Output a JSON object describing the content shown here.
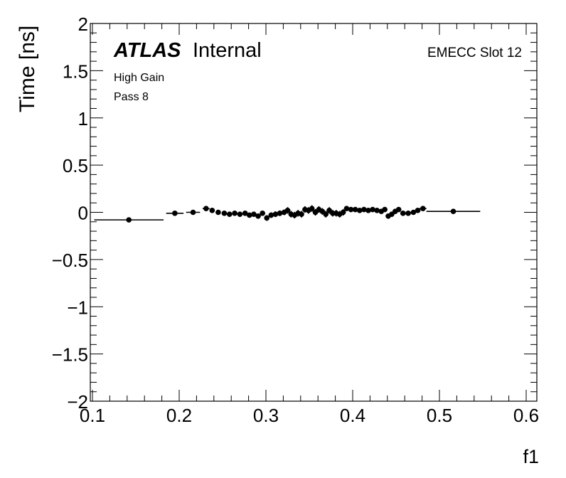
{
  "chart_data": {
    "type": "scatter",
    "xlabel": "f1",
    "ylabel": "Time [ns]",
    "xlim": [
      0.1,
      0.6
    ],
    "ylim": [
      -2,
      2
    ],
    "x_ticks": [
      "0.1",
      "0.2",
      "0.3",
      "0.4",
      "0.5",
      "0.6"
    ],
    "y_ticks": [
      "2",
      "1.5",
      "1",
      "0.5",
      "0",
      "−0.5",
      "−1",
      "−1.5",
      "−2"
    ],
    "x_tick_values": [
      0.1,
      0.2,
      0.3,
      0.4,
      0.5,
      0.6
    ],
    "y_tick_values": [
      2,
      1.5,
      1,
      0.5,
      0,
      -0.5,
      -1,
      -1.5,
      -2
    ],
    "grid": false,
    "annotations": {
      "experiment": "ATLAS",
      "status": "Internal",
      "gain": "High Gain",
      "pass": "Pass 8",
      "region": "EMECC Slot 12"
    },
    "series": [
      {
        "points": [
          {
            "x": 0.142,
            "y": -0.08,
            "xerr": 0.04,
            "yerr": 0.015
          },
          {
            "x": 0.195,
            "y": -0.01,
            "xerr": 0.01,
            "yerr": 0.015
          },
          {
            "x": 0.216,
            "y": 0.0,
            "xerr": 0.008,
            "yerr": 0.015
          },
          {
            "x": 0.231,
            "y": 0.04,
            "xerr": 0.004,
            "yerr": 0.02
          },
          {
            "x": 0.238,
            "y": 0.02,
            "xerr": 0.003,
            "yerr": 0.02
          },
          {
            "x": 0.245,
            "y": 0.0,
            "xerr": 0.003,
            "yerr": 0.02
          },
          {
            "x": 0.252,
            "y": -0.01,
            "xerr": 0.003,
            "yerr": 0.02
          },
          {
            "x": 0.258,
            "y": -0.02,
            "xerr": 0.003,
            "yerr": 0.02
          },
          {
            "x": 0.264,
            "y": -0.01,
            "xerr": 0.003,
            "yerr": 0.02
          },
          {
            "x": 0.27,
            "y": -0.02,
            "xerr": 0.003,
            "yerr": 0.02
          },
          {
            "x": 0.276,
            "y": -0.01,
            "xerr": 0.003,
            "yerr": 0.02
          },
          {
            "x": 0.281,
            "y": -0.03,
            "xerr": 0.003,
            "yerr": 0.025
          },
          {
            "x": 0.286,
            "y": -0.02,
            "xerr": 0.003,
            "yerr": 0.025
          },
          {
            "x": 0.291,
            "y": -0.04,
            "xerr": 0.003,
            "yerr": 0.025
          },
          {
            "x": 0.296,
            "y": -0.01,
            "xerr": 0.003,
            "yerr": 0.025
          },
          {
            "x": 0.301,
            "y": -0.06,
            "xerr": 0.003,
            "yerr": 0.03
          },
          {
            "x": 0.306,
            "y": -0.03,
            "xerr": 0.003,
            "yerr": 0.03
          },
          {
            "x": 0.311,
            "y": -0.02,
            "xerr": 0.003,
            "yerr": 0.03
          },
          {
            "x": 0.316,
            "y": -0.01,
            "xerr": 0.003,
            "yerr": 0.03
          },
          {
            "x": 0.321,
            "y": 0.0,
            "xerr": 0.003,
            "yerr": 0.03
          },
          {
            "x": 0.325,
            "y": 0.02,
            "xerr": 0.003,
            "yerr": 0.035
          },
          {
            "x": 0.329,
            "y": -0.02,
            "xerr": 0.003,
            "yerr": 0.035
          },
          {
            "x": 0.333,
            "y": -0.03,
            "xerr": 0.003,
            "yerr": 0.035
          },
          {
            "x": 0.337,
            "y": -0.01,
            "xerr": 0.003,
            "yerr": 0.035
          },
          {
            "x": 0.341,
            "y": -0.02,
            "xerr": 0.003,
            "yerr": 0.035
          },
          {
            "x": 0.345,
            "y": 0.03,
            "xerr": 0.003,
            "yerr": 0.035
          },
          {
            "x": 0.349,
            "y": 0.02,
            "xerr": 0.003,
            "yerr": 0.035
          },
          {
            "x": 0.353,
            "y": 0.04,
            "xerr": 0.003,
            "yerr": 0.035
          },
          {
            "x": 0.357,
            "y": 0.0,
            "xerr": 0.003,
            "yerr": 0.035
          },
          {
            "x": 0.361,
            "y": 0.03,
            "xerr": 0.003,
            "yerr": 0.035
          },
          {
            "x": 0.365,
            "y": 0.01,
            "xerr": 0.003,
            "yerr": 0.035
          },
          {
            "x": 0.369,
            "y": -0.02,
            "xerr": 0.003,
            "yerr": 0.035
          },
          {
            "x": 0.373,
            "y": 0.02,
            "xerr": 0.003,
            "yerr": 0.035
          },
          {
            "x": 0.377,
            "y": -0.01,
            "xerr": 0.003,
            "yerr": 0.035
          },
          {
            "x": 0.381,
            "y": -0.01,
            "xerr": 0.003,
            "yerr": 0.035
          },
          {
            "x": 0.385,
            "y": -0.02,
            "xerr": 0.003,
            "yerr": 0.035
          },
          {
            "x": 0.389,
            "y": 0.0,
            "xerr": 0.003,
            "yerr": 0.035
          },
          {
            "x": 0.393,
            "y": 0.04,
            "xerr": 0.003,
            "yerr": 0.025
          },
          {
            "x": 0.398,
            "y": 0.03,
            "xerr": 0.003,
            "yerr": 0.025
          },
          {
            "x": 0.403,
            "y": 0.03,
            "xerr": 0.003,
            "yerr": 0.025
          },
          {
            "x": 0.408,
            "y": 0.02,
            "xerr": 0.003,
            "yerr": 0.025
          },
          {
            "x": 0.413,
            "y": 0.03,
            "xerr": 0.003,
            "yerr": 0.025
          },
          {
            "x": 0.418,
            "y": 0.02,
            "xerr": 0.003,
            "yerr": 0.025
          },
          {
            "x": 0.423,
            "y": 0.03,
            "xerr": 0.003,
            "yerr": 0.025
          },
          {
            "x": 0.428,
            "y": 0.02,
            "xerr": 0.003,
            "yerr": 0.025
          },
          {
            "x": 0.433,
            "y": 0.01,
            "xerr": 0.003,
            "yerr": 0.025
          },
          {
            "x": 0.437,
            "y": 0.03,
            "xerr": 0.003,
            "yerr": 0.025
          },
          {
            "x": 0.441,
            "y": -0.04,
            "xerr": 0.003,
            "yerr": 0.025
          },
          {
            "x": 0.445,
            "y": -0.02,
            "xerr": 0.003,
            "yerr": 0.025
          },
          {
            "x": 0.449,
            "y": 0.01,
            "xerr": 0.003,
            "yerr": 0.025
          },
          {
            "x": 0.453,
            "y": 0.03,
            "xerr": 0.003,
            "yerr": 0.025
          },
          {
            "x": 0.458,
            "y": -0.01,
            "xerr": 0.003,
            "yerr": 0.02
          },
          {
            "x": 0.464,
            "y": -0.01,
            "xerr": 0.003,
            "yerr": 0.02
          },
          {
            "x": 0.47,
            "y": 0.0,
            "xerr": 0.003,
            "yerr": 0.02
          },
          {
            "x": 0.475,
            "y": 0.02,
            "xerr": 0.003,
            "yerr": 0.02
          },
          {
            "x": 0.481,
            "y": 0.04,
            "xerr": 0.004,
            "yerr": 0.02
          },
          {
            "x": 0.516,
            "y": 0.01,
            "xerr": 0.031,
            "yerr": 0.015
          }
        ]
      }
    ]
  }
}
